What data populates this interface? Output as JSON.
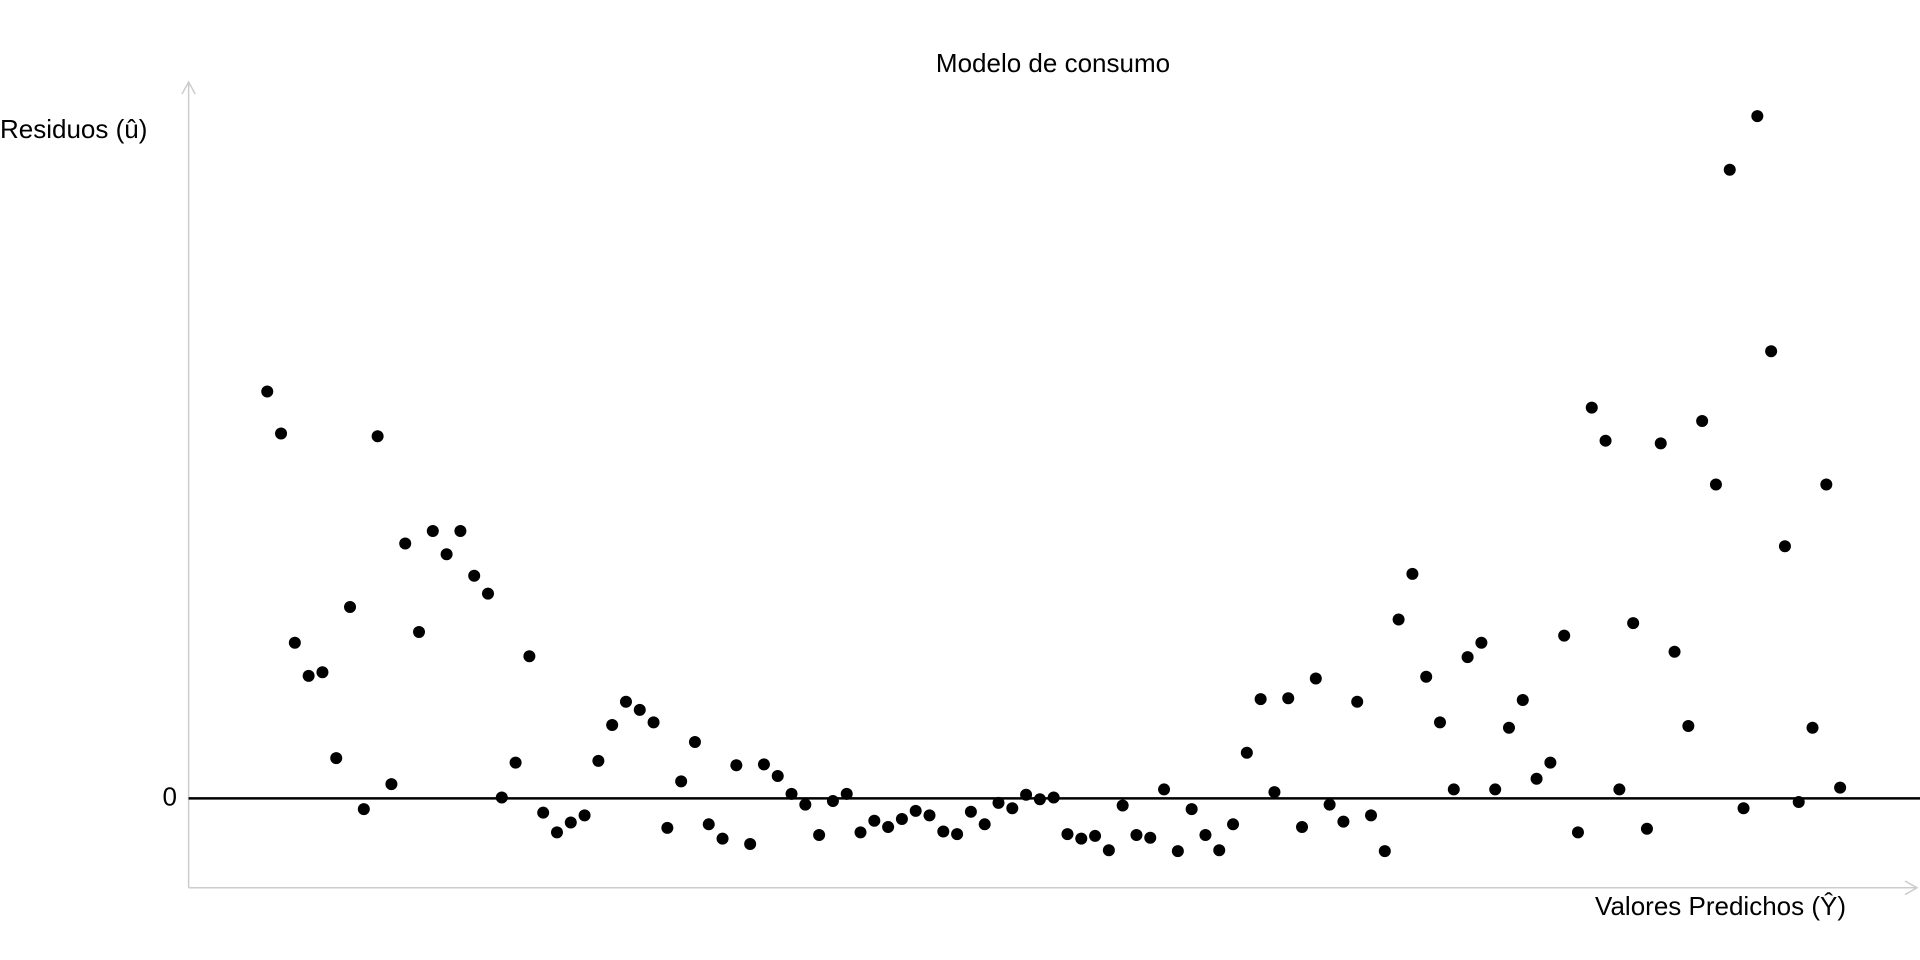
{
  "chart_data": {
    "type": "scatter",
    "title": "Modelo de consumo",
    "x_label": "Valores Predichos (Ŷ)",
    "y_label": "Residuos (û)",
    "x": [
      1,
      2,
      3,
      4,
      5,
      6,
      7,
      8,
      9,
      10,
      11,
      12,
      13,
      14,
      15,
      16,
      17,
      18,
      19,
      20,
      21,
      22,
      23,
      24,
      25,
      26,
      27,
      28,
      29,
      30,
      31,
      32,
      33,
      34,
      35,
      36,
      37,
      38,
      39,
      40,
      41,
      42,
      43,
      44,
      45,
      46,
      47,
      48,
      49,
      50,
      51,
      52,
      53,
      54,
      55,
      56,
      57,
      58,
      59,
      60,
      61,
      62,
      63,
      64,
      65,
      66,
      67,
      68,
      69,
      70,
      71,
      72,
      73,
      74,
      75,
      76,
      77,
      78,
      79,
      80,
      81,
      82,
      83,
      84,
      85,
      86,
      87,
      88,
      89,
      90,
      91,
      92,
      93,
      94,
      95,
      96,
      97,
      98,
      99,
      100,
      101,
      102,
      103,
      104,
      105,
      106,
      107,
      108,
      109,
      110,
      111,
      112,
      113,
      114,
      115
    ],
    "values": [
      4.55,
      4.08,
      1.74,
      1.37,
      1.41,
      0.45,
      2.14,
      -0.12,
      4.05,
      0.16,
      2.85,
      1.86,
      2.99,
      2.73,
      2.99,
      2.49,
      2.29,
      0.01,
      0.4,
      1.59,
      -0.16,
      -0.38,
      -0.27,
      -0.19,
      0.42,
      0.82,
      1.08,
      0.99,
      0.85,
      -0.33,
      0.19,
      0.63,
      -0.29,
      -0.45,
      0.37,
      -0.51,
      0.38,
      0.25,
      0.05,
      -0.07,
      -0.41,
      -0.03,
      0.05,
      -0.38,
      -0.25,
      -0.32,
      -0.23,
      -0.14,
      -0.19,
      -0.37,
      -0.4,
      -0.15,
      -0.29,
      -0.05,
      -0.11,
      0.04,
      -0.01,
      0.01,
      -0.4,
      -0.45,
      -0.42,
      -0.58,
      -0.08,
      -0.41,
      -0.44,
      0.1,
      -0.59,
      -0.12,
      -0.41,
      -0.58,
      -0.29,
      0.51,
      1.11,
      0.07,
      1.12,
      -0.32,
      1.34,
      -0.07,
      -0.26,
      1.08,
      -0.19,
      -0.59,
      2.0,
      2.51,
      1.36,
      0.85,
      0.1,
      1.58,
      1.74,
      0.1,
      0.79,
      1.1,
      0.22,
      0.4,
      1.82,
      -0.38,
      4.37,
      4.0,
      0.1,
      1.96,
      -0.34,
      3.97,
      1.64,
      0.81,
      4.22,
      3.51,
      7.03,
      -0.11,
      7.63,
      5.0,
      2.82,
      -0.04,
      0.79,
      3.51,
      0.12
    ],
    "color": "#000000",
    "xlim": [
      -4.7,
      120.5
    ],
    "ylim": [
      -1,
      8
    ],
    "yticks": [
      0
    ]
  }
}
